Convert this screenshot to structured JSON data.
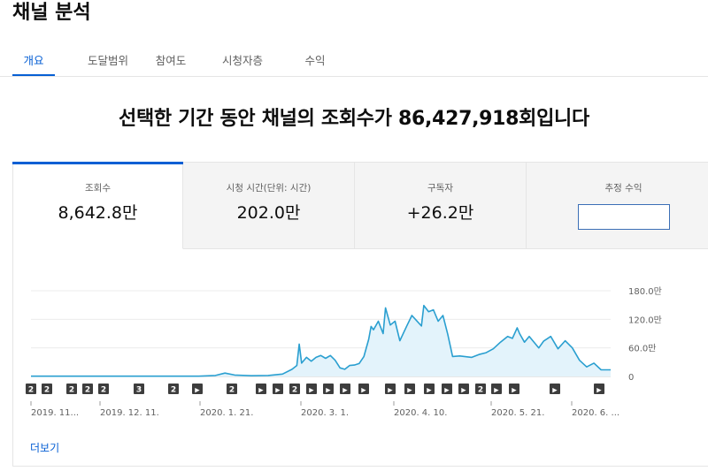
{
  "page_title": "채널 분석",
  "tabs": [
    {
      "label": "개요",
      "active": true
    },
    {
      "label": "도달범위",
      "active": false
    },
    {
      "label": "참여도",
      "active": false
    },
    {
      "label": "시청자층",
      "active": false
    },
    {
      "label": "수익",
      "active": false
    }
  ],
  "headline": "선택한 기간 동안 채널의 조회수가 86,427,918회입니다",
  "metrics": [
    {
      "label": "조회수",
      "value": "8,642.8만"
    },
    {
      "label": "시청 시간(단위: 시간)",
      "value": "202.0만"
    },
    {
      "label": "구독자",
      "value": "+26.2만"
    },
    {
      "label": "추정 수익",
      "value": ""
    }
  ],
  "more_link": "더보기",
  "colors": {
    "accent": "#065fd4",
    "line": "#2a9fd0",
    "area": "#e3f3fb",
    "marker": "#3d3d3d"
  },
  "chart_data": {
    "type": "area",
    "y_tick_labels": [
      "180.0만",
      "120.0만",
      "60.0만",
      "0"
    ],
    "y_ticks": [
      180,
      120,
      60,
      0
    ],
    "ylim": [
      0,
      180
    ],
    "y_unit": "만",
    "grid": true,
    "x_tick_labels": [
      "2019. 11...",
      "2019. 12. 11.",
      "2020. 1. 21.",
      "2020. 3. 1.",
      "2020. 4. 10.",
      "2020. 5. 21.",
      "2020. 6. ..."
    ],
    "x_tick_dates": [
      "2019-11-01",
      "2019-12-11",
      "2020-01-21",
      "2020-03-01",
      "2020-04-10",
      "2020-05-21",
      "2020-06-30"
    ],
    "series": [
      {
        "values": [
          [
            "2019-11-01",
            0.5
          ],
          [
            "2019-12-01",
            0.5
          ],
          [
            "2020-01-01",
            0.5
          ],
          [
            "2020-01-10",
            0.6
          ],
          [
            "2020-01-17",
            2
          ],
          [
            "2020-01-21",
            7
          ],
          [
            "2020-01-25",
            3
          ],
          [
            "2020-02-01",
            1.5
          ],
          [
            "2020-02-08",
            2
          ],
          [
            "2020-02-14",
            5
          ],
          [
            "2020-02-18",
            15
          ],
          [
            "2020-02-20",
            23
          ],
          [
            "2020-02-21",
            68
          ],
          [
            "2020-02-22",
            28
          ],
          [
            "2020-02-24",
            40
          ],
          [
            "2020-02-26",
            32
          ],
          [
            "2020-02-28",
            40
          ],
          [
            "2020-03-01",
            44
          ],
          [
            "2020-03-03",
            38
          ],
          [
            "2020-03-05",
            44
          ],
          [
            "2020-03-07",
            34
          ],
          [
            "2020-03-09",
            18
          ],
          [
            "2020-03-11",
            15
          ],
          [
            "2020-03-13",
            23
          ],
          [
            "2020-03-15",
            24
          ],
          [
            "2020-03-17",
            27
          ],
          [
            "2020-03-19",
            42
          ],
          [
            "2020-03-21",
            78
          ],
          [
            "2020-03-22",
            105
          ],
          [
            "2020-03-23",
            98
          ],
          [
            "2020-03-25",
            116
          ],
          [
            "2020-03-27",
            90
          ],
          [
            "2020-03-28",
            144
          ],
          [
            "2020-03-30",
            108
          ],
          [
            "2020-04-01",
            116
          ],
          [
            "2020-04-03",
            75
          ],
          [
            "2020-04-06",
            107
          ],
          [
            "2020-04-08",
            128
          ],
          [
            "2020-04-10",
            117
          ],
          [
            "2020-04-12",
            106
          ],
          [
            "2020-04-13",
            149
          ],
          [
            "2020-04-15",
            136
          ],
          [
            "2020-04-17",
            140
          ],
          [
            "2020-04-19",
            116
          ],
          [
            "2020-04-21",
            128
          ],
          [
            "2020-04-23",
            88
          ],
          [
            "2020-04-25",
            42
          ],
          [
            "2020-04-28",
            43
          ],
          [
            "2020-05-03",
            40
          ],
          [
            "2020-05-06",
            46
          ],
          [
            "2020-05-09",
            50
          ],
          [
            "2020-05-12",
            58
          ],
          [
            "2020-05-15",
            72
          ],
          [
            "2020-05-18",
            84
          ],
          [
            "2020-05-20",
            80
          ],
          [
            "2020-05-22",
            102
          ],
          [
            "2020-05-23",
            90
          ],
          [
            "2020-05-25",
            72
          ],
          [
            "2020-05-27",
            84
          ],
          [
            "2020-05-29",
            72
          ],
          [
            "2020-05-31",
            60
          ],
          [
            "2020-06-02",
            74
          ],
          [
            "2020-06-05",
            84
          ],
          [
            "2020-06-08",
            58
          ],
          [
            "2020-06-11",
            75
          ],
          [
            "2020-06-14",
            60
          ],
          [
            "2020-06-17",
            34
          ],
          [
            "2020-06-20",
            20
          ],
          [
            "2020-06-23",
            28
          ],
          [
            "2020-06-26",
            14
          ],
          [
            "2020-06-30",
            14
          ]
        ]
      }
    ],
    "event_markers": [
      "2",
      "2",
      "2",
      "2",
      "2",
      "3",
      "2",
      "▶",
      "2",
      "▶",
      "▶",
      "2",
      "▶",
      "▶",
      "▶",
      "▶",
      "▶",
      "▶",
      "▶",
      "▶",
      "▶",
      "2",
      "▶",
      "▶",
      "▶",
      "▶",
      "▶"
    ]
  }
}
